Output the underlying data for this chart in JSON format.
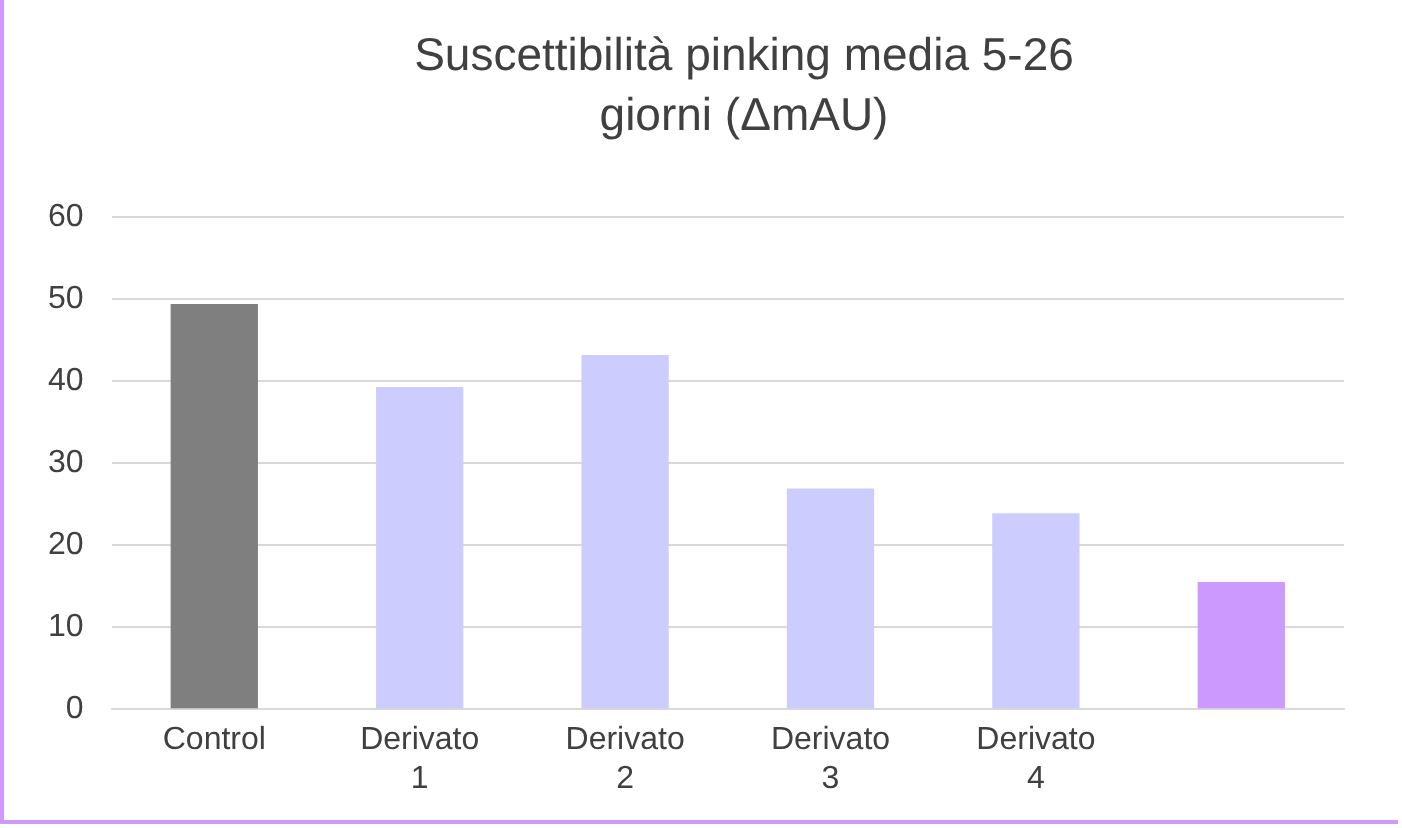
{
  "chart_data": {
    "type": "bar",
    "title": "Suscettibilità pinking media 5-26 giorni (ΔmAU)",
    "categories": [
      "Control",
      "Derivato 1",
      "Derivato 2",
      "Derivato 3",
      "Derivato 4",
      null
    ],
    "values": [
      49.4,
      39.3,
      43.2,
      26.9,
      23.9,
      15.5
    ],
    "colors": [
      "#7f7f7f",
      "#ccccff",
      "#ccccff",
      "#ccccff",
      "#ccccff",
      "#cc99ff"
    ],
    "ylim": [
      0,
      60
    ],
    "yticks": [
      0,
      10,
      20,
      30,
      40,
      50,
      60
    ],
    "grid": "y",
    "legend": false
  }
}
